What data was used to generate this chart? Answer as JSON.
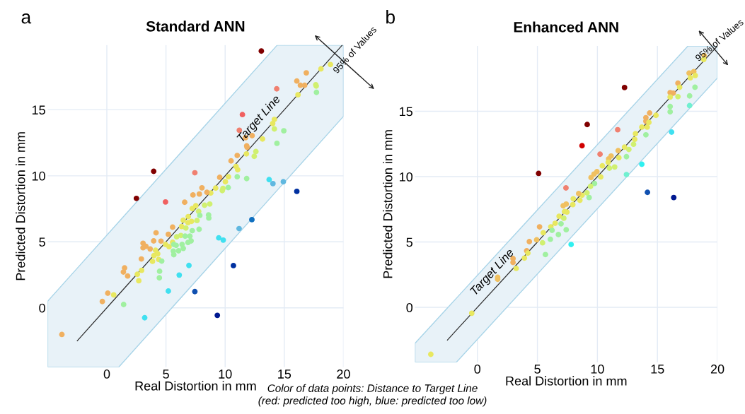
{
  "chart_data": [
    {
      "type": "scatter",
      "title": "Standard ANN",
      "xlabel": "Real Distortion in mm",
      "ylabel": "Predicted Distortion in mm",
      "xlim": [
        -5,
        20
      ],
      "ylim": [
        -4.5,
        19.9
      ],
      "xticks": [
        0,
        5,
        10,
        15,
        20
      ],
      "yticks": [
        0,
        5,
        10,
        15
      ],
      "grid": true,
      "annotations": [
        "a",
        "95% of Values",
        "Color of data points: Distance to Target Line\n(red: predicted too high, blue: predicted too low)"
      ],
      "series": [
        {
          "marker": "circle",
          "x": [
            13.06,
            18.9,
            18.1,
            16.86,
            16.06,
            16.36,
            16.72,
            17.66,
            17.7,
            17.72,
            14.36,
            16.16,
            11.46,
            14.16,
            14.02,
            14.16,
            14.96,
            11.2,
            11.72,
            12.28,
            13.16,
            14.38,
            11.82,
            11.86,
            11.8,
            12.6,
            12.46,
            11.02,
            10.5,
            10.92,
            11.06,
            11.02,
            11.82,
            13.72,
            14.04,
            14.92,
            16.06,
            3.96,
            7.44,
            9.54,
            10.28,
            10.02,
            10.26,
            9.82,
            9.76,
            9.2,
            8.78,
            8.46,
            8.04,
            7.82,
            7.28,
            2.5,
            4.96,
            6.58,
            8.7,
            8.26,
            7.52,
            7.22,
            7.76,
            8.6,
            8.62,
            7.86,
            7.62,
            6.88,
            6.46,
            6.86,
            7.16,
            6.32,
            6.68,
            5.56,
            7.8,
            7.22,
            12.26,
            11.18,
            4.16,
            5.2,
            6.26,
            5.9,
            6.62,
            7.02,
            9.46,
            9.84,
            3.96,
            4.58,
            3.06,
            3.3,
            3.06,
            3.66,
            5.56,
            4.96,
            5.26,
            5.66,
            5.86,
            6.36,
            6.86,
            7.12,
            5.62,
            6.06,
            6.46,
            5.66,
            4.12,
            4.3,
            3.98,
            4.38,
            3.86,
            4.64,
            2.92,
            1.5,
            1.4,
            1.76,
            2.58,
            2.94,
            2.7,
            4.46,
            4.44,
            6.94,
            6.12,
            5.2,
            7.44,
            10.7,
            9.34,
            3.2,
            1.42,
            0.08,
            0.58,
            -0.38,
            -3.8
          ],
          "values": [
            19.45,
            18.43,
            18.1,
            17.8,
            17.18,
            16.86,
            16.86,
            16.9,
            16.8,
            16.32,
            16.59,
            16.14,
            14.64,
            14.27,
            13.96,
            13.55,
            13.41,
            13.45,
            12.89,
            13.04,
            12.79,
            12.46,
            12.27,
            12.16,
            11.66,
            11.84,
            11.48,
            11.54,
            11.13,
            10.71,
            10.46,
            9.93,
            9.79,
            9.71,
            9.41,
            9.55,
            8.82,
            10.34,
            10.23,
            9.89,
            9.93,
            9.55,
            9.11,
            9.05,
            8.88,
            9.07,
            8.7,
            8.75,
            9.09,
            8.62,
            8.55,
            8.29,
            8.02,
            8.0,
            7.86,
            7.77,
            7.73,
            7.52,
            7.3,
            7.04,
            6.8,
            7.0,
            6.61,
            6.91,
            6.64,
            6.45,
            6.55,
            6.16,
            6.04,
            6.11,
            5.95,
            5.84,
            6.68,
            6.0,
            5.68,
            5.57,
            5.48,
            5.38,
            5.43,
            5.43,
            5.3,
            5.13,
            5.07,
            5.05,
            4.89,
            4.66,
            4.55,
            4.46,
            4.96,
            4.8,
            4.63,
            4.8,
            4.73,
            4.8,
            4.95,
            5.07,
            4.3,
            4.32,
            4.5,
            4.02,
            4.36,
            4.09,
            3.96,
            3.66,
            3.52,
            3.54,
            3.7,
            3.02,
            2.71,
            2.41,
            2.54,
            2.84,
            2.05,
            2.77,
            2.27,
            3.21,
            2.48,
            1.27,
            1.23,
            3.2,
            -0.57,
            -0.75,
            0.25,
            1.11,
            0.98,
            0.48,
            -2.02
          ],
          "colors": [
            "#800000",
            "#e8e860",
            "#e8e860",
            "#f0b060",
            "#f0b060",
            "#f0b060",
            "#f0b060",
            "#d0f070",
            "#d0f070",
            "#a0f0a0",
            "#f08070",
            "#e8e860",
            "#f06060",
            "#e8e860",
            "#e8e860",
            "#d0f070",
            "#a0f0a0",
            "#f08070",
            "#f0b060",
            "#f0b060",
            "#e8e860",
            "#a0f0a0",
            "#f0b060",
            "#f0b060",
            "#e8e860",
            "#d0f070",
            "#d0f070",
            "#f0b060",
            "#f0b060",
            "#e8e860",
            "#e8e860",
            "#a0f0a0",
            "#a0f0a0",
            "#40e0f0",
            "#60b8e0",
            "#60b8e0",
            "#0030a0",
            "#800000",
            "#f08070",
            "#f0b060",
            "#e8e860",
            "#e8e860",
            "#a0f0a0",
            "#d0f070",
            "#d0f070",
            "#e8e860",
            "#e8e860",
            "#f0b060",
            "#f0b060",
            "#f0b060",
            "#f0b060",
            "#800000",
            "#f06060",
            "#f0b060",
            "#d0f070",
            "#d0f070",
            "#e8e860",
            "#e8e860",
            "#d0f070",
            "#a0f0a0",
            "#a0f0a0",
            "#a0f0a0",
            "#d0f070",
            "#e8e860",
            "#e8e860",
            "#e8e860",
            "#e8e860",
            "#e8e860",
            "#d0f070",
            "#f0b060",
            "#a0f0a0",
            "#a0f0a0",
            "#1070c0",
            "#60b8e0",
            "#f0b060",
            "#f0b060",
            "#d0f070",
            "#d0f070",
            "#a0f0a0",
            "#a0f0a0",
            "#40e0f0",
            "#40e0f0",
            "#f0b060",
            "#f0b060",
            "#f0b060",
            "#f0b060",
            "#f0b060",
            "#f0b060",
            "#e8e860",
            "#e8e860",
            "#e8e860",
            "#a0f0a0",
            "#a0f0a0",
            "#a0f0a0",
            "#a0f0a0",
            "#a0f0a0",
            "#a0f0a0",
            "#a0f0a0",
            "#a0f0a0",
            "#a0f0a0",
            "#e8e860",
            "#e8e860",
            "#e8e860",
            "#e8e860",
            "#e8e860",
            "#a0f0a0",
            "#f0b060",
            "#f0b060",
            "#f0b060",
            "#f0b060",
            "#e8e860",
            "#e8e860",
            "#e8e860",
            "#a0f0a0",
            "#a0f0a0",
            "#40e0f0",
            "#40e0f0",
            "#40e0f0",
            "#1050b0",
            "#0030a0",
            "#001890",
            "#40e0f0",
            "#a0f0a0",
            "#f0b060",
            "#e8e860",
            "#f0b060",
            "#f0b060"
          ]
        },
        {
          "type": "line",
          "name": "Target Line",
          "color": "#303030",
          "line_style": "solid",
          "x": [
            -5,
            -2.5,
            1.0,
            14.4,
            19.9,
            20
          ],
          "values": [
            null,
            -2.5,
            1.0,
            14.4,
            19.9,
            null
          ],
          "lower": [
            -4.5,
            -4.5,
            -4.5,
            8.9,
            14.4,
            14.5
          ],
          "upper": [
            0.5,
            3.0,
            6.5,
            19.9,
            19.9,
            19.9
          ]
        }
      ]
    },
    {
      "type": "scatter",
      "title": "Enhanced ANN",
      "xlabel": "Real Distortion in mm",
      "ylabel": "Predicted Distortion in mm",
      "xlim": [
        -5.2,
        20
      ],
      "ylim": [
        -4.2,
        20
      ],
      "xticks": [
        0,
        5,
        10,
        15,
        20
      ],
      "yticks": [
        0,
        5,
        10,
        15
      ],
      "grid": true,
      "annotations": [
        "b",
        "95% of Values"
      ],
      "series": [
        {
          "marker": "circle",
          "x": [
            18.9,
            18.86,
            17.64,
            18.03,
            17.74,
            18.15,
            18.13,
            17.68,
            17.68,
            16.71,
            16.85,
            16.71,
            16.06,
            16.32,
            16.06,
            16.06,
            16.06,
            16.18,
            16.36,
            14.17,
            13.7,
            12.42,
            12.26,
            11.69,
            9.15,
            8.72,
            10.22,
            5.1,
            7.38,
            5.18,
            7.81,
            14.35,
            14.04,
            14.04,
            14.29,
            14.15,
            14.88,
            13.7,
            14.04,
            13.17,
            13.11,
            13.01,
            12.42,
            12.62,
            12.26,
            11.73,
            11.79,
            11.14,
            10.94,
            10.9,
            11.0,
            11.44,
            10.41,
            9.96,
            9.72,
            9.47,
            10.28,
            9.76,
            9.43,
            9.13,
            9.31,
            8.72,
            8.44,
            7.99,
            8.54,
            7.95,
            7.4,
            7.15,
            7.26,
            7.46,
            7.2,
            6.81,
            6.97,
            6.48,
            6.12,
            6.22,
            6.75,
            7.4,
            5.49,
            4.94,
            4.33,
            5.43,
            6.08,
            5.67,
            4.11,
            4.21,
            3.92,
            2.97,
            2.97,
            3.23,
            1.69,
            1.69,
            -0.47,
            -3.88
          ],
          "values": [
            19.26,
            18.96,
            17.92,
            18.04,
            17.56,
            17.74,
            16.84,
            16.18,
            15.44,
            17.15,
            16.84,
            16.12,
            16.43,
            16.39,
            16.09,
            15.37,
            14.96,
            13.41,
            8.4,
            8.8,
            10.95,
            10.16,
            16.82,
            13.59,
            13.99,
            12.37,
            11.72,
            10.25,
            9.14,
            6.16,
            4.81,
            14.87,
            14.51,
            14.24,
            14.15,
            13.79,
            14.69,
            13.79,
            13.2,
            13.29,
            12.85,
            12.48,
            11.53,
            12.08,
            12.26,
            11.99,
            11.45,
            11.58,
            11.36,
            11.1,
            10.65,
            10.74,
            10.83,
            10.38,
            10.2,
            9.93,
            9.98,
            9.48,
            9.26,
            8.76,
            8.4,
            8.58,
            8.71,
            8.31,
            8.19,
            7.86,
            7.9,
            7.77,
            7.33,
            7.29,
            6.82,
            6.97,
            6.39,
            6.43,
            6.16,
            5.89,
            5.57,
            5.94,
            5.71,
            5.17,
            5.03,
            4.94,
            5.21,
            4.04,
            4.33,
            4.15,
            3.77,
            3.73,
            3.43,
            2.98,
            2.3,
            2.15,
            -0.45,
            -3.59
          ],
          "colors": [
            "#f0c060",
            "#e8e860",
            "#f0c060",
            "#f0c060",
            "#e8e860",
            "#e8e860",
            "#a0f0a0",
            "#a0f0a0",
            "#70f0d0",
            "#f0b060",
            "#e8e860",
            "#d0f070",
            "#f0b060",
            "#f0b060",
            "#e8e860",
            "#a0f0a0",
            "#a0f0a0",
            "#40e0f0",
            "#001890",
            "#1050b0",
            "#30f0f0",
            "#70f0d0",
            "#800000",
            "#f08070",
            "#800000",
            "#d00000",
            "#f08070",
            "#800000",
            "#f08070",
            "#f0b060",
            "#30f0f0",
            "#f0b060",
            "#f0b060",
            "#f0b060",
            "#e8e860",
            "#e8e860",
            "#e8e860",
            "#e8e860",
            "#a0f0a0",
            "#e8e860",
            "#e8e860",
            "#d0f070",
            "#a0f0a0",
            "#d0f070",
            "#e8e860",
            "#f0c060",
            "#e8e860",
            "#f0c060",
            "#f0c060",
            "#e8e860",
            "#d0f070",
            "#d0f070",
            "#e8e860",
            "#f0c060",
            "#f0c060",
            "#f0c060",
            "#e8e860",
            "#a0f0a0",
            "#d0f070",
            "#d0f070",
            "#a0f0a0",
            "#e8e860",
            "#f0c060",
            "#e8e860",
            "#e8e860",
            "#e8e860",
            "#f0c060",
            "#f0c060",
            "#e8e860",
            "#e8e860",
            "#d0f070",
            "#e8e860",
            "#a0f0a0",
            "#e8e860",
            "#e8e860",
            "#a0f0a0",
            "#a0f0a0",
            "#a0f0a0",
            "#e8e860",
            "#f0c060",
            "#f0b060",
            "#d0f070",
            "#a0f0a0",
            "#a0f0a0",
            "#f0b060",
            "#e8e860",
            "#e8e860",
            "#f0b060",
            "#f0b060",
            "#e8e860",
            "#f0c060",
            "#f0c060",
            "#e8e860",
            "#e8e860"
          ]
        },
        {
          "type": "line",
          "name": "Target Line",
          "color": "#303030",
          "line_style": "solid",
          "x": [
            -5.2,
            -2.5,
            -1.75,
            17.55,
            20
          ],
          "values": [
            null,
            -2.5,
            -1.75,
            17.55,
            20
          ],
          "lower": [
            -4.2,
            -4.2,
            -4.2,
            15.1,
            17.55
          ],
          "upper": [
            -2.75,
            -0.05,
            0.7,
            20,
            20
          ]
        }
      ]
    }
  ]
}
